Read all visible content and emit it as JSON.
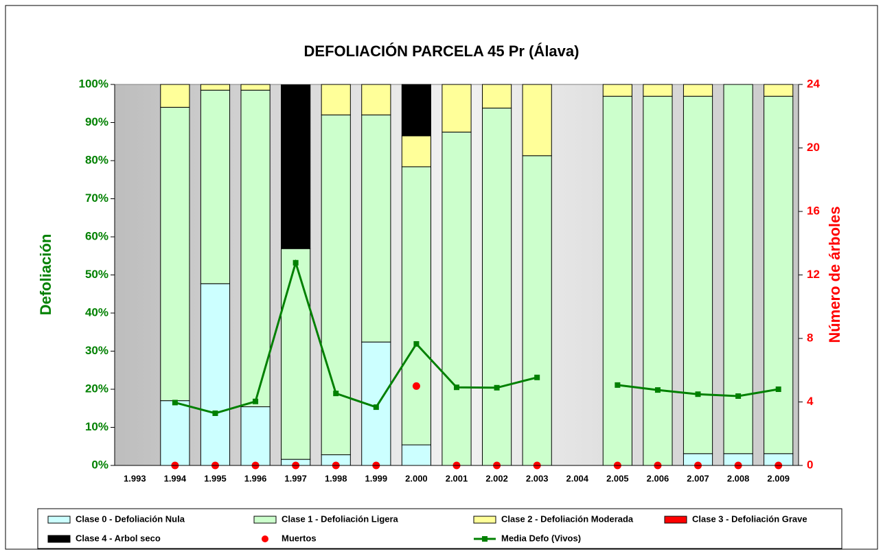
{
  "chart_data": {
    "type": "bar",
    "stacked": true,
    "title": "DEFOLIACIÓN PARCELA 45 Pr (Álava)",
    "ylabel": "Defoliación",
    "y2label": "Número de árboles",
    "categories": [
      "1.993",
      "1.994",
      "1.995",
      "1.996",
      "1.997",
      "1.998",
      "1.999",
      "2.000",
      "2.001",
      "2.002",
      "2.003",
      "2.004",
      "2.005",
      "2.006",
      "2.007",
      "2.008",
      "2.009"
    ],
    "series": [
      {
        "name": "Clase 0 - Defoliación Nula",
        "type": "bar",
        "color": "#ccffff",
        "values": [
          null,
          17,
          47.7,
          15.4,
          1.6,
          2.8,
          32.4,
          5.4,
          0,
          0,
          0,
          null,
          0,
          0,
          3.1,
          3.1,
          3.1
        ]
      },
      {
        "name": "Clase 1 - Defoliación Ligera",
        "type": "bar",
        "color": "#ccffcc",
        "values": [
          null,
          77,
          50.8,
          83.1,
          55.3,
          89.2,
          59.6,
          73,
          87.5,
          93.8,
          81.3,
          null,
          96.9,
          96.9,
          93.8,
          96.9,
          93.8
        ]
      },
      {
        "name": "Clase 2 - Defoliación Moderada",
        "type": "bar",
        "color": "#ffff99",
        "values": [
          null,
          6,
          1.5,
          1.5,
          0,
          8,
          8,
          8.1,
          12.5,
          6.2,
          18.7,
          null,
          3.1,
          3.1,
          3.1,
          0,
          3.1
        ]
      },
      {
        "name": "Clase 3 - Defoliación Grave",
        "type": "bar",
        "color": "#ff0000",
        "values": [
          null,
          0,
          0,
          0,
          0,
          0,
          0,
          0,
          0,
          0,
          0,
          null,
          0,
          0,
          0,
          0,
          0
        ]
      },
      {
        "name": "Clase 4 - Arbol seco",
        "type": "bar",
        "color": "#000000",
        "values": [
          null,
          0,
          0,
          0,
          43,
          0,
          0,
          13.5,
          0,
          0,
          0,
          null,
          0,
          0,
          0,
          0,
          0
        ]
      },
      {
        "name": "Muertos",
        "type": "scatter",
        "axis": "y2",
        "color": "#ff0000",
        "values": [
          null,
          0,
          0,
          0,
          0,
          0,
          0,
          5,
          0,
          0,
          0,
          null,
          0,
          0,
          0,
          0,
          0
        ]
      },
      {
        "name": "Media Defo (Vivos)",
        "type": "line",
        "color": "#008000",
        "values": [
          null,
          16.5,
          13.7,
          16.8,
          53.2,
          18.9,
          15.3,
          31.9,
          20.5,
          20.4,
          23.1,
          null,
          21.1,
          19.8,
          18.7,
          18.2,
          20.0
        ]
      }
    ],
    "ylim": [
      0,
      100
    ],
    "yticks": [
      {
        "value": 0,
        "label": "0%"
      },
      {
        "value": 10,
        "label": "10%"
      },
      {
        "value": 20,
        "label": "20%"
      },
      {
        "value": 30,
        "label": "30%"
      },
      {
        "value": 40,
        "label": "40%"
      },
      {
        "value": 50,
        "label": "50%"
      },
      {
        "value": 60,
        "label": "60%"
      },
      {
        "value": 70,
        "label": "70%"
      },
      {
        "value": 80,
        "label": "80%"
      },
      {
        "value": 90,
        "label": "90%"
      },
      {
        "value": 100,
        "label": "100%"
      }
    ],
    "y2lim": [
      0,
      24
    ],
    "y2ticks": [
      0,
      4,
      8,
      12,
      16,
      20,
      24
    ],
    "grid": false,
    "legend": "bottom"
  }
}
